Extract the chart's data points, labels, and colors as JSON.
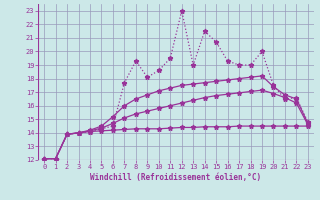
{
  "bg_color": "#cce8e8",
  "grid_color": "#9999bb",
  "line_color": "#993399",
  "xlim": [
    -0.5,
    23.5
  ],
  "ylim": [
    12,
    23.5
  ],
  "xticks": [
    0,
    1,
    2,
    3,
    4,
    5,
    6,
    7,
    8,
    9,
    10,
    11,
    12,
    13,
    14,
    15,
    16,
    17,
    18,
    19,
    20,
    21,
    22,
    23
  ],
  "yticks": [
    12,
    13,
    14,
    15,
    16,
    17,
    18,
    19,
    20,
    21,
    22,
    23
  ],
  "xlabel": "Windchill (Refroidissement éolien,°C)",
  "line1_x": [
    0,
    1,
    2,
    3,
    4,
    5,
    6,
    7,
    8,
    9,
    10,
    11,
    12,
    13,
    14,
    15,
    16,
    17,
    18,
    19,
    20,
    21,
    22,
    23
  ],
  "line1_y": [
    12.1,
    12.1,
    13.9,
    14.0,
    14.1,
    14.3,
    14.5,
    17.7,
    19.3,
    18.1,
    18.6,
    19.5,
    23.0,
    19.0,
    21.5,
    20.7,
    19.3,
    19.0,
    19.0,
    20.0,
    17.5,
    16.5,
    16.6,
    14.8
  ],
  "line2_x": [
    0,
    1,
    2,
    3,
    4,
    5,
    6,
    7,
    8,
    9,
    10,
    11,
    12,
    13,
    14,
    15,
    16,
    17,
    18,
    19,
    20,
    21,
    22,
    23
  ],
  "line2_y": [
    12.1,
    12.1,
    13.9,
    14.0,
    14.2,
    14.5,
    15.2,
    16.0,
    16.5,
    16.8,
    17.1,
    17.3,
    17.5,
    17.6,
    17.7,
    17.8,
    17.9,
    18.0,
    18.1,
    18.2,
    17.4,
    16.8,
    16.5,
    14.7
  ],
  "line3_x": [
    0,
    1,
    2,
    3,
    4,
    5,
    6,
    7,
    8,
    9,
    10,
    11,
    12,
    13,
    14,
    15,
    16,
    17,
    18,
    19,
    20,
    21,
    22,
    23
  ],
  "line3_y": [
    12.1,
    12.1,
    13.9,
    14.0,
    14.15,
    14.35,
    14.7,
    15.1,
    15.4,
    15.6,
    15.8,
    16.0,
    16.2,
    16.4,
    16.6,
    16.75,
    16.85,
    16.95,
    17.05,
    17.15,
    16.9,
    16.6,
    16.2,
    14.6
  ],
  "line4_x": [
    0,
    1,
    2,
    3,
    4,
    5,
    6,
    7,
    8,
    9,
    10,
    11,
    12,
    13,
    14,
    15,
    16,
    17,
    18,
    19,
    20,
    21,
    22,
    23
  ],
  "line4_y": [
    12.1,
    12.1,
    13.9,
    14.0,
    14.1,
    14.15,
    14.2,
    14.25,
    14.3,
    14.3,
    14.3,
    14.35,
    14.4,
    14.4,
    14.45,
    14.45,
    14.45,
    14.5,
    14.5,
    14.5,
    14.5,
    14.5,
    14.5,
    14.5
  ]
}
